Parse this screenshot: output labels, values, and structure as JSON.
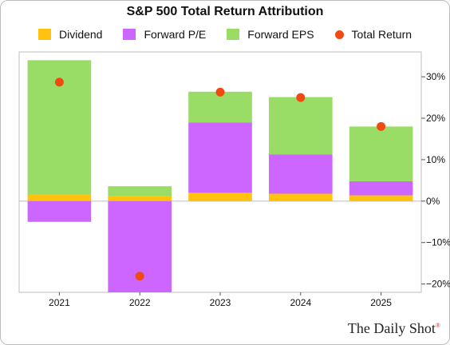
{
  "chart_data": {
    "type": "bar",
    "stacked": true,
    "title": "S&P 500 Total Return Attribution",
    "categories": [
      "2021",
      "2022",
      "2023",
      "2024",
      "2025"
    ],
    "series": [
      {
        "name": "Dividend",
        "kind": "bar",
        "color": "#ffc20e",
        "values": [
          1.7,
          1.3,
          2.0,
          1.8,
          1.4
        ]
      },
      {
        "name": "Forward P/E",
        "kind": "bar",
        "color": "#cc66ff",
        "values": [
          -5.0,
          -22.0,
          17.0,
          9.5,
          3.4
        ]
      },
      {
        "name": "Forward EPS",
        "kind": "bar",
        "color": "#99dd66",
        "values": [
          32.3,
          2.3,
          7.4,
          13.8,
          13.2
        ]
      },
      {
        "name": "Total Return",
        "kind": "point",
        "color": "#f04a12",
        "values": [
          28.7,
          -18.1,
          26.3,
          25.0,
          18.0
        ]
      }
    ],
    "ylim": [
      -22,
      36
    ],
    "yticks": [
      -20,
      -10,
      0,
      10,
      20,
      30
    ],
    "ytick_labels": [
      "−20%",
      "−10%",
      "0%",
      "10%",
      "20%",
      "30%"
    ],
    "y_axis_side": "right",
    "grid": false,
    "legend_position": "top"
  },
  "brand": {
    "name": "The Daily Shot",
    "mark": "®"
  }
}
